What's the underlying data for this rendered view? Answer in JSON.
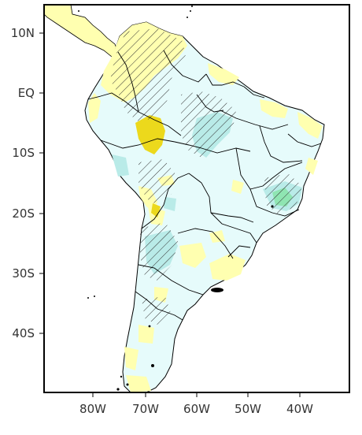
{
  "map": {
    "lat_labels": [
      "10N",
      "EQ",
      "10S",
      "20S",
      "30S",
      "40S"
    ],
    "lon_labels": [
      "80W",
      "70W",
      "60W",
      "50W",
      "40W"
    ],
    "colors": {
      "ocean": "#ffffff",
      "land_base": "#e6fbfb",
      "positive_light": "#ffffb0",
      "positive_strong": "#ecd91c",
      "negative_strong": "#b9ebe8",
      "negative_green": "#8fe5b2",
      "border": "#000000",
      "hatch": "#333333"
    }
  }
}
